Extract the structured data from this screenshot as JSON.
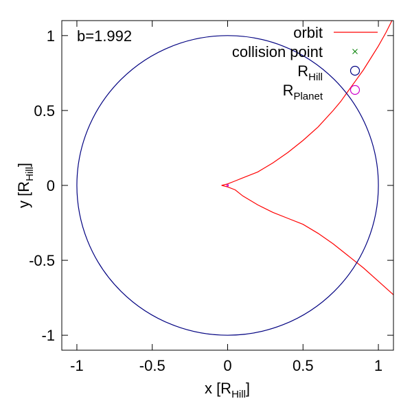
{
  "chart_data": {
    "type": "line",
    "annotation": "b=1.992",
    "xlabel": {
      "prefix": "x [R",
      "sub": "Hill",
      "suffix": "]"
    },
    "ylabel": {
      "prefix": "y [R",
      "sub": "Hill",
      "suffix": "]"
    },
    "xlim": [
      -1.1,
      1.1
    ],
    "ylim": [
      -1.1,
      1.1
    ],
    "xticks": [
      {
        "value": -1,
        "label": "-1"
      },
      {
        "value": -0.5,
        "label": "-0.5"
      },
      {
        "value": 0,
        "label": "0"
      },
      {
        "value": 0.5,
        "label": "0.5"
      },
      {
        "value": 1,
        "label": "1"
      }
    ],
    "yticks": [
      {
        "value": -1,
        "label": "-1"
      },
      {
        "value": -0.5,
        "label": "-0.5"
      },
      {
        "value": 0,
        "label": "0"
      },
      {
        "value": 0.5,
        "label": "0.5"
      },
      {
        "value": 1,
        "label": "1"
      }
    ],
    "legend": [
      {
        "key": "orbit",
        "label": "orbit",
        "sub": "",
        "color": "#ff0000",
        "symbol": "line"
      },
      {
        "key": "collision",
        "label": "collision point",
        "sub": "",
        "color": "#008000",
        "symbol": "cross"
      },
      {
        "key": "hill",
        "label": "R",
        "sub": "Hill",
        "color": "#000080",
        "symbol": "circle"
      },
      {
        "key": "planet",
        "label": "R",
        "sub": "Planet",
        "color": "#cc00cc",
        "symbol": "circle"
      }
    ],
    "series": [
      {
        "name": "orbit",
        "color": "#ff0000",
        "points": [
          [
            1.1,
            1.12
          ],
          [
            1.05,
            1.02
          ],
          [
            1.0,
            0.93
          ],
          [
            0.95,
            0.85
          ],
          [
            0.9,
            0.77
          ],
          [
            0.85,
            0.7
          ],
          [
            0.8,
            0.63
          ],
          [
            0.75,
            0.56
          ],
          [
            0.7,
            0.5
          ],
          [
            0.6,
            0.39
          ],
          [
            0.5,
            0.3
          ],
          [
            0.4,
            0.22
          ],
          [
            0.3,
            0.15
          ],
          [
            0.2,
            0.09
          ],
          [
            0.1,
            0.05
          ],
          [
            0.05,
            0.03
          ],
          [
            0.0,
            0.01
          ],
          [
            -0.04,
            0.0
          ],
          [
            0.0,
            -0.01
          ],
          [
            0.05,
            -0.03
          ],
          [
            0.1,
            -0.07
          ],
          [
            0.2,
            -0.13
          ],
          [
            0.3,
            -0.18
          ],
          [
            0.4,
            -0.22
          ],
          [
            0.5,
            -0.26
          ],
          [
            0.6,
            -0.32
          ],
          [
            0.7,
            -0.39
          ],
          [
            0.8,
            -0.47
          ],
          [
            0.9,
            -0.55
          ],
          [
            1.0,
            -0.64
          ],
          [
            1.1,
            -0.73
          ]
        ]
      },
      {
        "name": "R_Hill",
        "color": "#000080",
        "circle": {
          "cx": 0,
          "cy": 0,
          "r": 1
        }
      },
      {
        "name": "R_Planet",
        "color": "#cc00cc",
        "circle": {
          "cx": 0,
          "cy": 0,
          "r": 0.005
        }
      }
    ]
  }
}
